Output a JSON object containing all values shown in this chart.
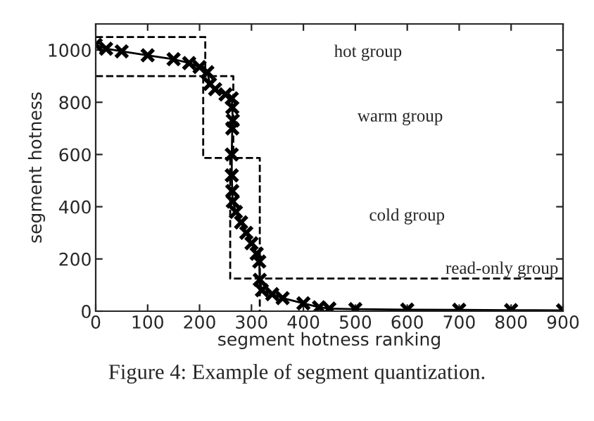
{
  "chart_data": {
    "type": "line",
    "xlabel": "segment hotness ranking",
    "ylabel": "segment hotness",
    "xlim": [
      0,
      900
    ],
    "ylim": [
      0,
      1100
    ],
    "xticks": [
      0,
      100,
      200,
      300,
      400,
      500,
      600,
      700,
      800,
      900
    ],
    "yticks": [
      0,
      200,
      400,
      600,
      800,
      1000
    ],
    "grid": false,
    "legend": false,
    "series": [
      {
        "color": "#000000",
        "marker": "cross",
        "line_style": "solid",
        "x": [
          0,
          20,
          50,
          100,
          150,
          180,
          200,
          215,
          220,
          230,
          250,
          262,
          263,
          264,
          263,
          262,
          262,
          263,
          264,
          270,
          280,
          290,
          300,
          310,
          315,
          316,
          320,
          340,
          360,
          400,
          430,
          450,
          500,
          600,
          700,
          800,
          900
        ],
        "values": [
          1020,
          1005,
          995,
          980,
          965,
          950,
          935,
          915,
          870,
          850,
          830,
          815,
          780,
          730,
          700,
          600,
          520,
          460,
          420,
          380,
          340,
          300,
          260,
          220,
          190,
          120,
          80,
          65,
          50,
          30,
          15,
          10,
          8,
          6,
          5,
          4,
          3
        ]
      },
      {
        "type": "line",
        "color": "#000000",
        "marker": "none",
        "line_style": "dashed",
        "x": [
          0,
          211,
          211
        ],
        "values": [
          1050,
          1050,
          900
        ]
      },
      {
        "type": "line",
        "color": "#000000",
        "marker": "none",
        "line_style": "dashed",
        "x": [
          0,
          265,
          265
        ],
        "values": [
          900,
          900,
          587
        ]
      },
      {
        "type": "line",
        "color": "#000000",
        "marker": "none",
        "line_style": "dashed",
        "x": [
          207,
          207,
          316,
          316
        ],
        "values": [
          900,
          587,
          587,
          0
        ]
      },
      {
        "type": "line",
        "color": "#000000",
        "marker": "none",
        "line_style": "dashed",
        "x": [
          259,
          259,
          900
        ],
        "values": [
          587,
          125,
          125
        ]
      }
    ],
    "annotations": [
      "hot group",
      "warm group",
      "cold group",
      "read-only group",
      "Figure 4: Example of segment quantization."
    ]
  }
}
